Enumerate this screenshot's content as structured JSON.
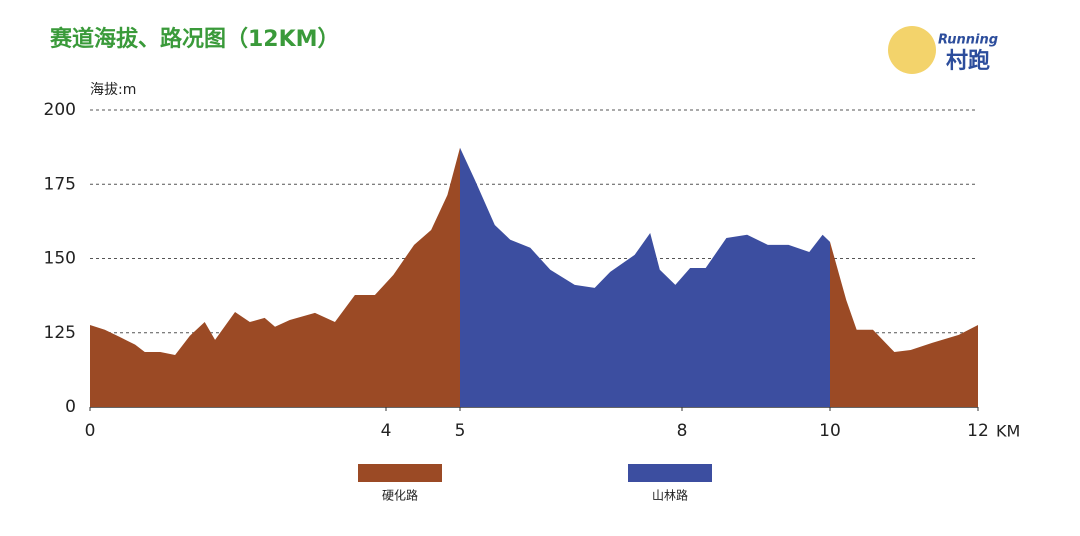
{
  "chart_data": {
    "type": "area",
    "title": "赛道海拔、路况图（12KM）",
    "y_label": "海拔:m",
    "x_label": "KM",
    "logo_texts": [
      "Running",
      "村跑"
    ],
    "xlim": [
      0,
      12
    ],
    "xticks": [
      0,
      4,
      5,
      8,
      10,
      12
    ],
    "ylim": [
      0,
      200
    ],
    "y_break": [
      0,
      100
    ],
    "yticks": [
      0,
      125,
      150,
      175,
      200
    ],
    "grid": true,
    "series": [
      {
        "name": "硬化路",
        "color": "#9b4a25",
        "x": [
          0,
          0.2,
          0.4,
          0.61,
          0.74,
          0.95,
          1.15,
          1.35,
          1.55,
          1.69,
          1.96,
          2.16,
          2.36,
          2.5,
          2.7,
          3.04,
          3.31,
          3.58,
          3.85,
          4.1,
          4.38,
          4.61,
          4.83,
          5,
          null,
          10,
          10.22,
          10.36,
          10.58,
          10.87,
          11.09,
          11.38,
          11.74,
          12
        ],
        "values": [
          127.6,
          126,
          123.6,
          121,
          118.5,
          118.5,
          117.5,
          124,
          128.6,
          122.6,
          132,
          128.6,
          130,
          127,
          129.3,
          131.7,
          128.6,
          137.7,
          137.7,
          144.5,
          154.6,
          159.6,
          171.4,
          187.3,
          null,
          155.6,
          136,
          126,
          126,
          118.5,
          119.2,
          121.6,
          124.3,
          127.6
        ]
      },
      {
        "name": "山林路",
        "color": "#3c4ea0",
        "x": [
          5,
          5.2,
          5.47,
          5.68,
          5.95,
          6.22,
          6.55,
          6.82,
          7.03,
          7.36,
          7.57,
          7.7,
          7.91,
          8.11,
          8.32,
          8.6,
          8.88,
          9.16,
          9.44,
          9.72,
          9.9,
          10
        ],
        "values": [
          187.3,
          176.5,
          161.3,
          156.3,
          153.6,
          146.2,
          141.1,
          140.1,
          145.5,
          151.2,
          158.6,
          146.2,
          141.1,
          146.8,
          146.8,
          156.9,
          158,
          154.6,
          154.6,
          152.2,
          158,
          155.6
        ]
      }
    ]
  }
}
